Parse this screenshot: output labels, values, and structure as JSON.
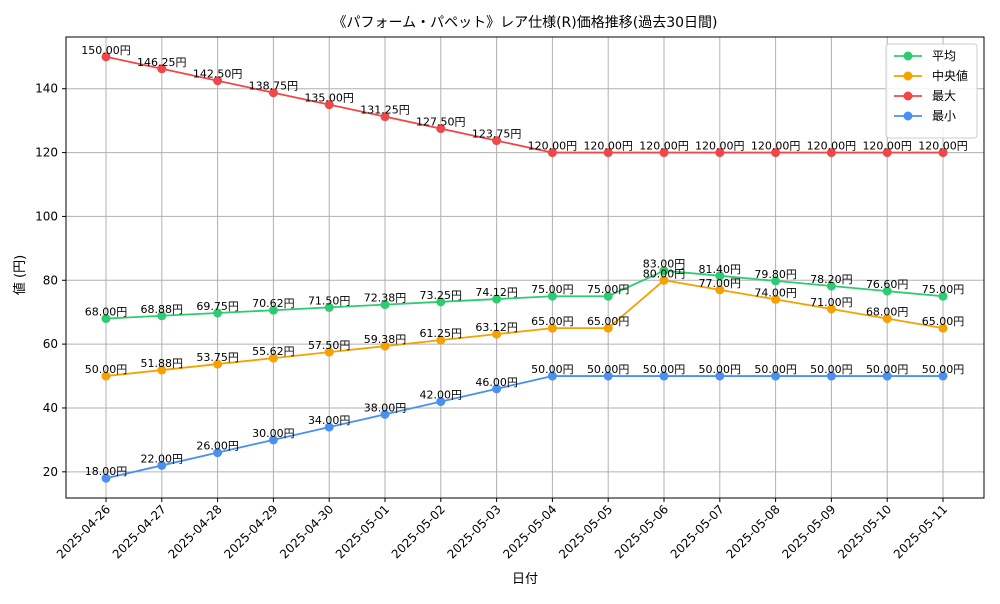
{
  "chart_data": {
    "type": "line",
    "title": "《パフォーム・パペット》レア仕様(R)価格推移(過去30日間)",
    "xlabel": "日付",
    "ylabel": "値 (円)",
    "categories": [
      "2025-04-26",
      "2025-04-27",
      "2025-04-28",
      "2025-04-29",
      "2025-04-30",
      "2025-05-01",
      "2025-05-02",
      "2025-05-03",
      "2025-05-04",
      "2025-05-05",
      "2025-05-06",
      "2025-05-07",
      "2025-05-08",
      "2025-05-09",
      "2025-05-10",
      "2025-05-11"
    ],
    "ylim": [
      11.8,
      156.2
    ],
    "yticks": [
      20,
      40,
      60,
      80,
      100,
      120,
      140
    ],
    "grid": true,
    "legend_position": "top-right",
    "value_suffix": "円",
    "series": [
      {
        "name": "平均",
        "color": "#2ecc71",
        "values": [
          68.0,
          68.88,
          69.75,
          70.62,
          71.5,
          72.38,
          73.25,
          74.12,
          75.0,
          75.0,
          83.0,
          81.4,
          79.8,
          78.2,
          76.6,
          75.0
        ]
      },
      {
        "name": "中央値",
        "color": "#f5a100",
        "values": [
          50.0,
          51.88,
          53.75,
          55.62,
          57.5,
          59.38,
          61.25,
          63.12,
          65.0,
          65.0,
          80.0,
          77.0,
          74.0,
          71.0,
          68.0,
          65.0
        ]
      },
      {
        "name": "最大",
        "color": "#f04848",
        "values": [
          150.0,
          146.25,
          142.5,
          138.75,
          135.0,
          131.25,
          127.5,
          123.75,
          120.0,
          120.0,
          120.0,
          120.0,
          120.0,
          120.0,
          120.0,
          120.0
        ]
      },
      {
        "name": "最小",
        "color": "#4a90f0",
        "values": [
          18.0,
          22.0,
          26.0,
          30.0,
          34.0,
          38.0,
          42.0,
          46.0,
          50.0,
          50.0,
          50.0,
          50.0,
          50.0,
          50.0,
          50.0,
          50.0
        ]
      }
    ]
  }
}
